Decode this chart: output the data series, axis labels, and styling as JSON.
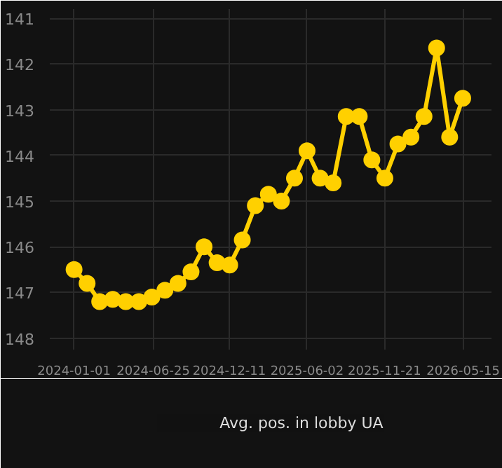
{
  "chart_data": {
    "type": "line",
    "x": [
      "2024-01-01",
      "2024-01-30",
      "2024-02-27",
      "2024-03-27",
      "2024-04-25",
      "2024-05-24",
      "2024-06-22",
      "2024-07-21",
      "2024-08-19",
      "2024-09-17",
      "2024-10-16",
      "2024-11-14",
      "2024-12-12",
      "2025-01-09",
      "2025-02-07",
      "2025-03-08",
      "2025-04-06",
      "2025-05-05",
      "2025-06-02",
      "2025-07-01",
      "2025-07-30",
      "2025-08-28",
      "2025-09-26",
      "2025-10-24",
      "2025-11-22",
      "2025-12-21",
      "2026-01-19",
      "2026-02-17",
      "2026-03-17",
      "2026-04-15",
      "2026-05-14"
    ],
    "series": [
      {
        "name": "Avg. pos. in lobby UA",
        "color": "#ffd000",
        "values": [
          146.5,
          146.8,
          147.2,
          147.15,
          147.2,
          147.2,
          147.1,
          146.95,
          146.8,
          146.55,
          146.0,
          146.35,
          146.4,
          145.85,
          145.1,
          144.85,
          145.0,
          144.5,
          143.9,
          144.5,
          144.6,
          143.15,
          143.15,
          144.1,
          144.5,
          143.75,
          143.6,
          143.15,
          141.65,
          143.6,
          142.75
        ]
      }
    ],
    "xlim": [
      "2023-11-08",
      "2026-07-17"
    ],
    "xticks": [
      "2024-01-01",
      "2024-06-25",
      "2024-12-11",
      "2025-06-02",
      "2025-11-21",
      "2026-05-15"
    ],
    "ylim": [
      148.25,
      140.8
    ],
    "yticks": [
      141,
      142,
      143,
      144,
      145,
      146,
      147,
      148
    ],
    "grid": true,
    "legend": "bottom",
    "marker": "circle",
    "line_style": "solid"
  }
}
